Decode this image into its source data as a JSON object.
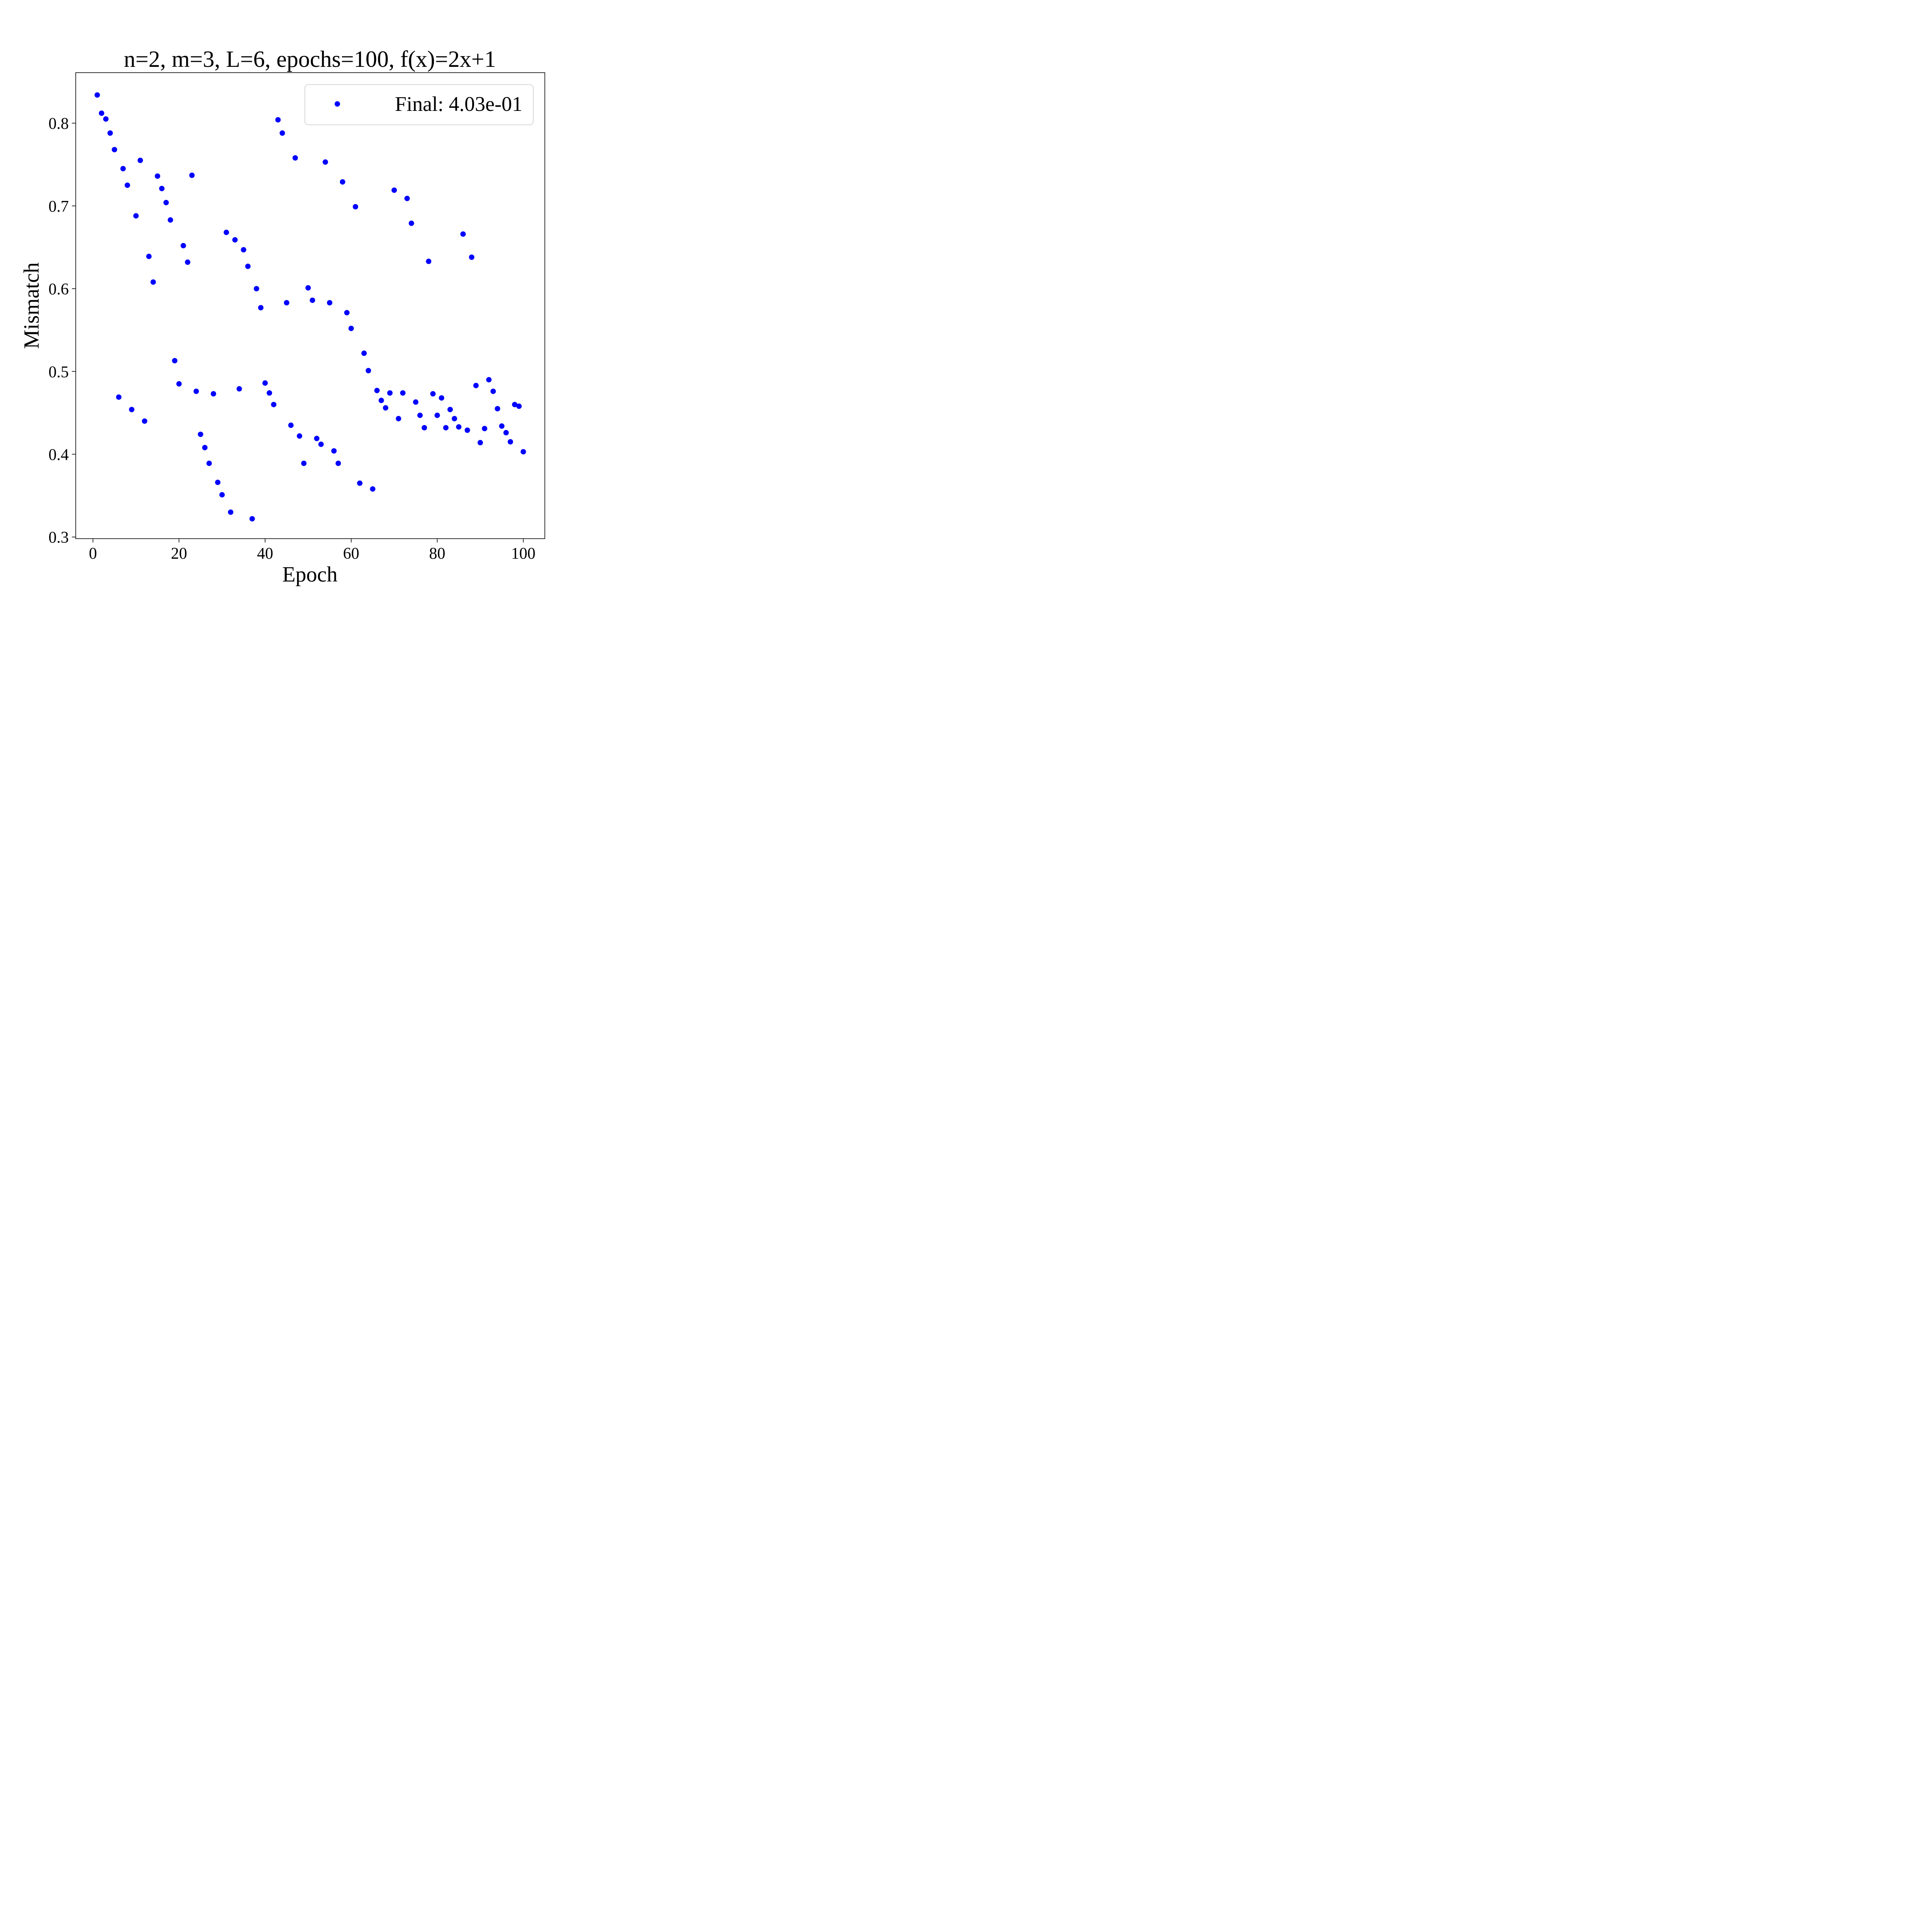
{
  "chart_data": {
    "type": "scatter",
    "title": "n=2, m=3, L=6, epochs=100, f(x)=2x+1",
    "xlabel": "Epoch",
    "ylabel": "Mismatch",
    "xlim": [
      -4,
      105
    ],
    "ylim": [
      0.298,
      0.861
    ],
    "xticks": [
      0,
      20,
      40,
      60,
      80,
      100
    ],
    "yticks": [
      0.3,
      0.4,
      0.5,
      0.6,
      0.7,
      0.8
    ],
    "xtick_labels": [
      "0",
      "20",
      "40",
      "60",
      "80",
      "100"
    ],
    "ytick_labels": [
      "0.3",
      "0.4",
      "0.5",
      "0.6",
      "0.7",
      "0.8"
    ],
    "grid": false,
    "legend": {
      "placement": "top-right",
      "entries": [
        "Final: 4.03e-01"
      ]
    },
    "colors": {
      "series": "#0000ff"
    },
    "series": [
      {
        "name": "Final: 4.03e-01",
        "x": [
          1,
          2,
          3,
          4,
          5,
          6,
          7,
          8,
          9,
          10,
          11,
          12,
          13,
          14,
          15,
          16,
          17,
          18,
          19,
          20,
          21,
          22,
          23,
          24,
          25,
          26,
          27,
          28,
          29,
          30,
          31,
          32,
          33,
          34,
          35,
          36,
          37,
          38,
          39,
          40,
          41,
          42,
          43,
          44,
          45,
          46,
          47,
          48,
          49,
          50,
          51,
          52,
          53,
          54,
          55,
          56,
          57,
          58,
          59,
          60,
          61,
          62,
          63,
          64,
          65,
          66,
          67,
          68,
          69,
          70,
          71,
          72,
          73,
          74,
          75,
          76,
          77,
          78,
          79,
          80,
          81,
          82,
          83,
          84,
          85,
          86,
          87,
          88,
          89,
          90,
          91,
          92,
          93,
          94,
          95,
          96,
          97,
          98,
          99,
          100
        ],
        "y": [
          0.834,
          0.812,
          0.805,
          0.788,
          0.768,
          0.469,
          0.745,
          0.725,
          0.454,
          0.688,
          0.755,
          0.44,
          0.639,
          0.608,
          0.736,
          0.721,
          0.704,
          0.683,
          0.513,
          0.485,
          0.652,
          0.632,
          0.737,
          0.476,
          0.424,
          0.408,
          0.389,
          0.473,
          0.366,
          0.351,
          0.668,
          0.33,
          0.659,
          0.479,
          0.647,
          0.627,
          0.322,
          0.6,
          0.577,
          0.486,
          0.474,
          0.46,
          0.804,
          0.788,
          0.583,
          0.435,
          0.758,
          0.422,
          0.389,
          0.601,
          0.586,
          0.419,
          0.412,
          0.753,
          0.583,
          0.404,
          0.389,
          0.729,
          0.571,
          0.552,
          0.699,
          0.365,
          0.522,
          0.501,
          0.358,
          0.477,
          0.465,
          0.456,
          0.474,
          0.719,
          0.443,
          0.474,
          0.709,
          0.679,
          0.463,
          0.447,
          0.432,
          0.633,
          0.473,
          0.447,
          0.468,
          0.432,
          0.454,
          0.443,
          0.433,
          0.666,
          0.429,
          0.638,
          0.483,
          0.414,
          0.431,
          0.49,
          0.476,
          0.455,
          0.434,
          0.426,
          0.415,
          0.46,
          0.458,
          0.403
        ]
      }
    ]
  }
}
